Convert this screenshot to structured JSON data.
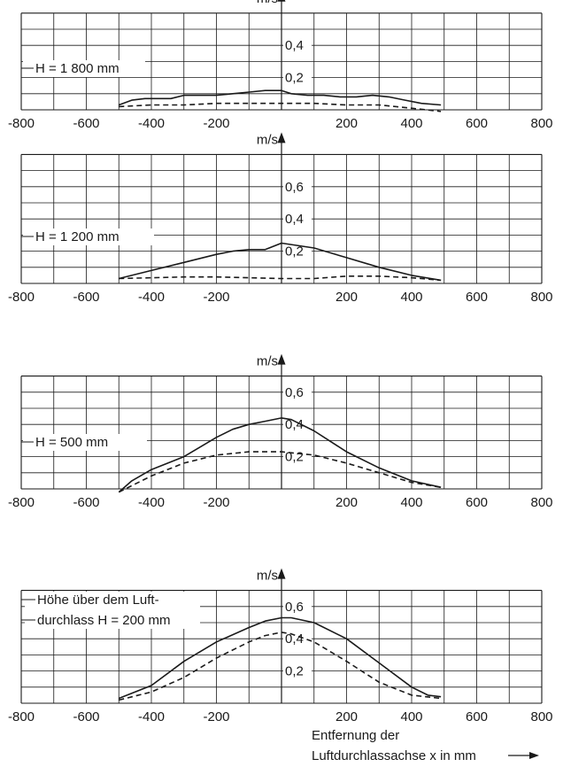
{
  "colors": {
    "ink": "#1a1a1a",
    "background": "#ffffff"
  },
  "chart_data": [
    {
      "type": "line",
      "annotation": [
        "H = 1 800 mm"
      ],
      "y_unit": "m/s",
      "xlim": [
        -800,
        800
      ],
      "ylim": [
        0,
        0.6
      ],
      "x_ticks": [
        "-800",
        "-600",
        "-400",
        "-200",
        "200",
        "400",
        "600",
        "800"
      ],
      "y_ticks": [
        "0,2",
        "0,4"
      ],
      "grid": true,
      "series": [
        {
          "style": "solid",
          "x": [
            -500,
            -460,
            -420,
            -380,
            -340,
            -300,
            -260,
            -200,
            -150,
            -100,
            -50,
            0,
            30,
            80,
            130,
            180,
            230,
            280,
            330,
            380,
            430,
            490
          ],
          "y": [
            0.03,
            0.06,
            0.07,
            0.07,
            0.07,
            0.09,
            0.09,
            0.09,
            0.1,
            0.11,
            0.12,
            0.12,
            0.1,
            0.09,
            0.09,
            0.08,
            0.08,
            0.09,
            0.08,
            0.06,
            0.04,
            0.03
          ]
        },
        {
          "style": "dashed",
          "x": [
            -500,
            -400,
            -300,
            -200,
            -100,
            0,
            100,
            200,
            300,
            400,
            490
          ],
          "y": [
            0.02,
            0.03,
            0.03,
            0.04,
            0.04,
            0.04,
            0.04,
            0.03,
            0.03,
            0.01,
            -0.01
          ]
        }
      ]
    },
    {
      "type": "line",
      "annotation": [
        "H = 1 200 mm"
      ],
      "y_unit": "m/s",
      "xlim": [
        -800,
        800
      ],
      "ylim": [
        0,
        0.8
      ],
      "x_ticks": [
        "-800",
        "-600",
        "-400",
        "-200",
        "200",
        "400",
        "600",
        "800"
      ],
      "y_ticks": [
        "0,2",
        "0,4",
        "0,6"
      ],
      "grid": true,
      "series": [
        {
          "style": "solid",
          "x": [
            -500,
            -400,
            -300,
            -200,
            -150,
            -100,
            -50,
            0,
            100,
            200,
            300,
            400,
            490
          ],
          "y": [
            0.03,
            0.08,
            0.13,
            0.18,
            0.2,
            0.21,
            0.21,
            0.25,
            0.22,
            0.16,
            0.1,
            0.05,
            0.02
          ]
        },
        {
          "style": "dashed",
          "x": [
            -500,
            -400,
            -300,
            -200,
            -100,
            0,
            100,
            200,
            300,
            400,
            490
          ],
          "y": [
            0.03,
            0.035,
            0.04,
            0.04,
            0.035,
            0.03,
            0.03,
            0.045,
            0.045,
            0.035,
            0.02
          ]
        }
      ]
    },
    {
      "type": "line",
      "annotation": [
        "H = 500 mm"
      ],
      "y_unit": "m/s",
      "xlim": [
        -800,
        800
      ],
      "ylim": [
        0,
        0.7
      ],
      "x_ticks": [
        "-800",
        "-600",
        "-400",
        "-200",
        "200",
        "400",
        "600",
        "800"
      ],
      "y_ticks": [
        "0,2",
        "0,4",
        "0,6"
      ],
      "grid": true,
      "series": [
        {
          "style": "solid",
          "x": [
            -500,
            -460,
            -400,
            -300,
            -200,
            -150,
            -100,
            -50,
            0,
            30,
            100,
            200,
            300,
            400,
            490
          ],
          "y": [
            -0.02,
            0.05,
            0.12,
            0.2,
            0.32,
            0.37,
            0.4,
            0.42,
            0.44,
            0.43,
            0.36,
            0.23,
            0.13,
            0.05,
            0.01
          ]
        },
        {
          "style": "dashed",
          "x": [
            -500,
            -400,
            -300,
            -200,
            -100,
            -50,
            0,
            50,
            100,
            200,
            300,
            400,
            490
          ],
          "y": [
            -0.02,
            0.08,
            0.16,
            0.21,
            0.23,
            0.23,
            0.23,
            0.22,
            0.21,
            0.16,
            0.1,
            0.04,
            0.01
          ]
        }
      ]
    },
    {
      "type": "line",
      "annotation": [
        "Höhe über dem Luft-",
        "durchlass H = 200 mm"
      ],
      "y_unit": "m/s",
      "xlim": [
        -800,
        800
      ],
      "ylim": [
        0,
        0.7
      ],
      "x_ticks": [
        "-800",
        "-600",
        "-400",
        "-200",
        "200",
        "400",
        "600",
        "800"
      ],
      "y_ticks": [
        "0,2",
        "0,4",
        "0,6"
      ],
      "grid": true,
      "series": [
        {
          "style": "solid",
          "x": [
            -500,
            -400,
            -300,
            -200,
            -100,
            -50,
            0,
            30,
            100,
            200,
            300,
            400,
            450,
            490
          ],
          "y": [
            0.03,
            0.11,
            0.26,
            0.38,
            0.47,
            0.51,
            0.53,
            0.53,
            0.5,
            0.4,
            0.25,
            0.1,
            0.05,
            0.04
          ]
        },
        {
          "style": "dashed",
          "x": [
            -500,
            -400,
            -300,
            -200,
            -100,
            -50,
            0,
            30,
            100,
            200,
            300,
            400,
            490
          ],
          "y": [
            0.02,
            0.07,
            0.16,
            0.28,
            0.38,
            0.42,
            0.44,
            0.43,
            0.38,
            0.26,
            0.13,
            0.05,
            0.03
          ]
        }
      ]
    }
  ],
  "x_axis_caption": [
    "Entfernung der",
    "Luftdurchlassachse x in mm"
  ]
}
